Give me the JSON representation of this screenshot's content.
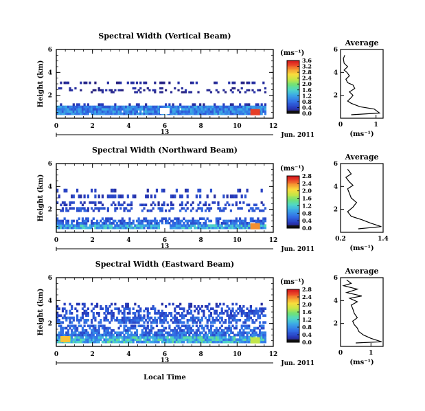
{
  "figure": {
    "ylabel": "Height (km)",
    "xlabel": "Local Time",
    "date_mark": "13",
    "date_right": "Jun. 2011",
    "unit_label": "(ms⁻¹)",
    "avg_title": "Average"
  },
  "chart_data": [
    {
      "type": "heatmap",
      "title": "Spectral Width (Vertical Beam)",
      "xlabel": "",
      "ylabel": "Height (km)",
      "xlim": [
        0,
        12
      ],
      "ylim": [
        0,
        6
      ],
      "xticks": [
        0,
        2,
        4,
        6,
        8,
        10,
        12
      ],
      "yticks": [
        2,
        4,
        6
      ],
      "colorbar_ticks": [
        "0.0",
        "0.4",
        "0.8",
        "1.2",
        "1.6",
        "2.0",
        "2.4",
        "2.8",
        "3.2",
        "3.6"
      ],
      "colorbar_max": 3.6,
      "data_extent_x": [
        0,
        11.5
      ],
      "layers": [
        {
          "y": [
            0.3,
            1.1
          ],
          "level": 0.9,
          "fill": 0.97
        },
        {
          "y": [
            1.1,
            1.3
          ],
          "level": 0.3,
          "fill": 0.35
        },
        {
          "y": [
            2.2,
            2.7
          ],
          "level": 0.2,
          "fill": 0.22
        },
        {
          "y": [
            3.0,
            3.2
          ],
          "level": 0.2,
          "fill": 0.3
        }
      ],
      "hotspots": [
        {
          "x": 11.0,
          "y": 0.5,
          "level": 3.4
        },
        {
          "x": 6.0,
          "y": 0.6,
          "level": 0.0
        }
      ]
    },
    {
      "type": "line",
      "title": "Average",
      "xlabel": "(ms⁻¹)",
      "ylabel": "",
      "xlim": [
        0,
        1.2
      ],
      "ylim": [
        0,
        6
      ],
      "xticks": [
        0,
        1
      ],
      "yticks": [
        2,
        4,
        6
      ],
      "profile": [
        [
          0.3,
          0.3
        ],
        [
          1.1,
          0.45
        ],
        [
          0.95,
          0.8
        ],
        [
          0.55,
          1.0
        ],
        [
          0.3,
          1.3
        ],
        [
          0.2,
          1.5
        ],
        [
          0.3,
          1.8
        ],
        [
          0.35,
          2.0
        ],
        [
          0.25,
          2.3
        ],
        [
          0.4,
          2.6
        ],
        [
          0.35,
          2.9
        ],
        [
          0.2,
          3.1
        ],
        [
          0.15,
          3.4
        ],
        [
          0.25,
          3.7
        ],
        [
          0.18,
          4.0
        ],
        [
          0.1,
          4.2
        ],
        [
          0.2,
          4.5
        ],
        [
          0.1,
          4.8
        ],
        [
          0.08,
          5.2
        ],
        [
          0.12,
          5.5
        ]
      ]
    },
    {
      "type": "heatmap",
      "title": "Spectral Width (Northward Beam)",
      "xlabel": "",
      "ylabel": "Height (km)",
      "xlim": [
        0,
        12
      ],
      "ylim": [
        0,
        6
      ],
      "xticks": [
        0,
        2,
        4,
        6,
        8,
        10,
        12
      ],
      "yticks": [
        2,
        4,
        6
      ],
      "colorbar_ticks": [
        "0.0",
        "0.4",
        "0.8",
        "1.2",
        "1.6",
        "2.0",
        "2.4",
        "2.8"
      ],
      "colorbar_max": 2.8,
      "data_extent_x": [
        0,
        11.5
      ],
      "layers": [
        {
          "y": [
            0.3,
            0.7
          ],
          "level": 0.9,
          "fill": 0.95
        },
        {
          "y": [
            0.7,
            1.1
          ],
          "level": 0.5,
          "fill": 0.75
        },
        {
          "y": [
            1.1,
            1.3
          ],
          "level": 0.4,
          "fill": 0.4
        },
        {
          "y": [
            1.8,
            2.2
          ],
          "level": 0.4,
          "fill": 0.45
        },
        {
          "y": [
            2.3,
            2.7
          ],
          "level": 0.3,
          "fill": 0.3
        },
        {
          "y": [
            3.0,
            3.3
          ],
          "level": 0.3,
          "fill": 0.35
        },
        {
          "y": [
            3.5,
            3.8
          ],
          "level": 0.3,
          "fill": 0.2
        }
      ],
      "hotspots": [
        {
          "x": 11.0,
          "y": 0.5,
          "level": 2.4
        },
        {
          "x": 6.0,
          "y": 0.4,
          "level": 0.0
        }
      ]
    },
    {
      "type": "line",
      "title": "Average",
      "xlabel": "(ms⁻¹)",
      "ylabel": "",
      "xlim": [
        0.2,
        1.4
      ],
      "ylim": [
        0,
        6
      ],
      "xticks": [
        0.2,
        1.4
      ],
      "yticks": [
        2,
        4,
        6
      ],
      "profile": [
        [
          0.7,
          0.3
        ],
        [
          1.35,
          0.5
        ],
        [
          1.05,
          0.8
        ],
        [
          0.8,
          1.1
        ],
        [
          0.5,
          1.4
        ],
        [
          0.4,
          1.8
        ],
        [
          0.55,
          2.2
        ],
        [
          0.65,
          2.6
        ],
        [
          0.5,
          3.0
        ],
        [
          0.45,
          3.4
        ],
        [
          0.4,
          3.8
        ],
        [
          0.55,
          4.1
        ],
        [
          0.45,
          4.4
        ],
        [
          0.35,
          4.8
        ],
        [
          0.5,
          5.1
        ],
        [
          0.4,
          5.5
        ]
      ]
    },
    {
      "type": "heatmap",
      "title": "Spectral Width (Eastward Beam)",
      "xlabel": "Local Time",
      "ylabel": "Height (km)",
      "xlim": [
        0,
        12
      ],
      "ylim": [
        0,
        6
      ],
      "xticks": [
        0,
        2,
        4,
        6,
        8,
        10,
        12
      ],
      "yticks": [
        2,
        4,
        6
      ],
      "colorbar_ticks": [
        "0.0",
        "0.4",
        "0.8",
        "1.2",
        "1.6",
        "2.0",
        "2.4",
        "2.8"
      ],
      "colorbar_max": 2.8,
      "data_extent_x": [
        0,
        11.5
      ],
      "layers": [
        {
          "y": [
            0.3,
            0.9
          ],
          "level": 1.0,
          "fill": 0.95
        },
        {
          "y": [
            0.9,
            1.3
          ],
          "level": 0.6,
          "fill": 0.8
        },
        {
          "y": [
            1.3,
            1.9
          ],
          "level": 0.5,
          "fill": 0.55
        },
        {
          "y": [
            2.0,
            2.6
          ],
          "level": 0.5,
          "fill": 0.55
        },
        {
          "y": [
            2.6,
            3.4
          ],
          "level": 0.4,
          "fill": 0.45
        },
        {
          "y": [
            3.4,
            3.8
          ],
          "level": 0.3,
          "fill": 0.2
        }
      ],
      "hotspots": [
        {
          "x": 0.5,
          "y": 0.6,
          "level": 2.2
        },
        {
          "x": 11.0,
          "y": 0.5,
          "level": 1.8
        }
      ]
    },
    {
      "type": "line",
      "title": "Average",
      "xlabel": "(ms⁻¹)",
      "ylabel": "",
      "xlim": [
        0,
        1.4
      ],
      "ylim": [
        0,
        6
      ],
      "xticks": [
        0,
        1
      ],
      "yticks": [
        2,
        4,
        6
      ],
      "profile": [
        [
          0.5,
          0.3
        ],
        [
          1.35,
          0.4
        ],
        [
          1.0,
          0.7
        ],
        [
          0.75,
          1.0
        ],
        [
          0.6,
          1.3
        ],
        [
          0.55,
          1.6
        ],
        [
          0.45,
          1.9
        ],
        [
          0.4,
          2.2
        ],
        [
          0.55,
          2.5
        ],
        [
          0.45,
          2.9
        ],
        [
          0.4,
          3.3
        ],
        [
          0.35,
          3.6
        ],
        [
          0.55,
          3.9
        ],
        [
          0.3,
          4.2
        ],
        [
          0.7,
          4.4
        ],
        [
          0.2,
          4.7
        ],
        [
          0.55,
          5.0
        ],
        [
          0.1,
          5.3
        ],
        [
          0.35,
          5.5
        ],
        [
          0.2,
          5.8
        ]
      ]
    }
  ]
}
